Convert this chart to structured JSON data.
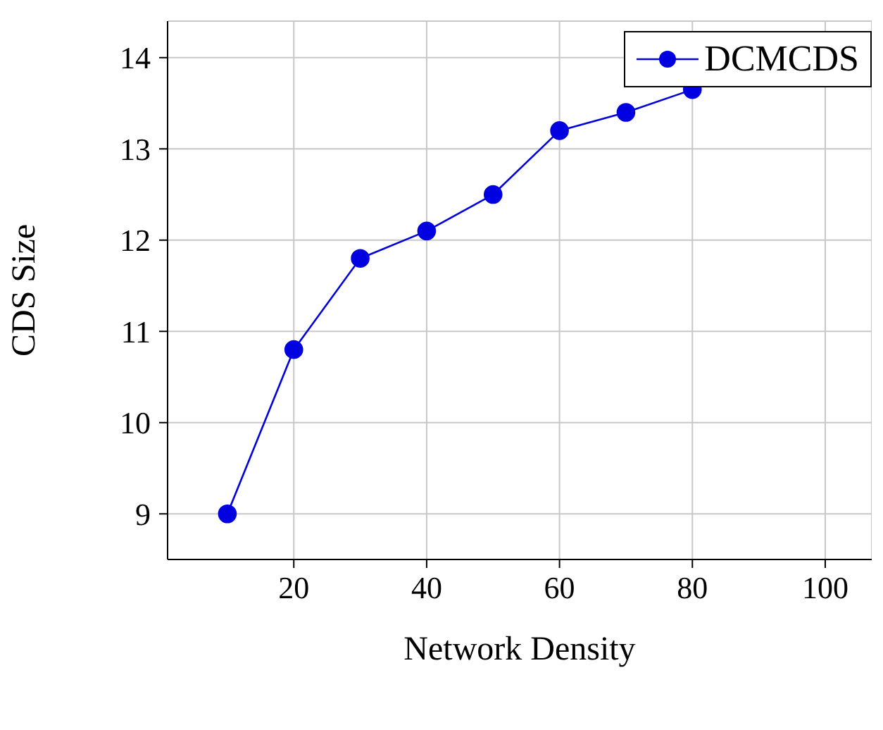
{
  "chart_data": {
    "type": "line",
    "xlabel": "Network Density",
    "ylabel": "CDS Size",
    "x": [
      10,
      20,
      30,
      40,
      50,
      60,
      70,
      80
    ],
    "series": [
      {
        "name": "DCMCDS",
        "color": "#0000e0",
        "values": [
          9,
          10.8,
          11.8,
          12.1,
          12.5,
          13.2,
          13.4,
          13.65
        ]
      }
    ],
    "xlim": [
      1,
      107
    ],
    "xticks": [
      20,
      40,
      60,
      80,
      100
    ],
    "ylim": [
      8.5,
      14.4
    ],
    "yticks": [
      9,
      10,
      11,
      12,
      13,
      14
    ],
    "grid": true,
    "legend": "top right",
    "marker": "circle",
    "line_style": "solid"
  }
}
